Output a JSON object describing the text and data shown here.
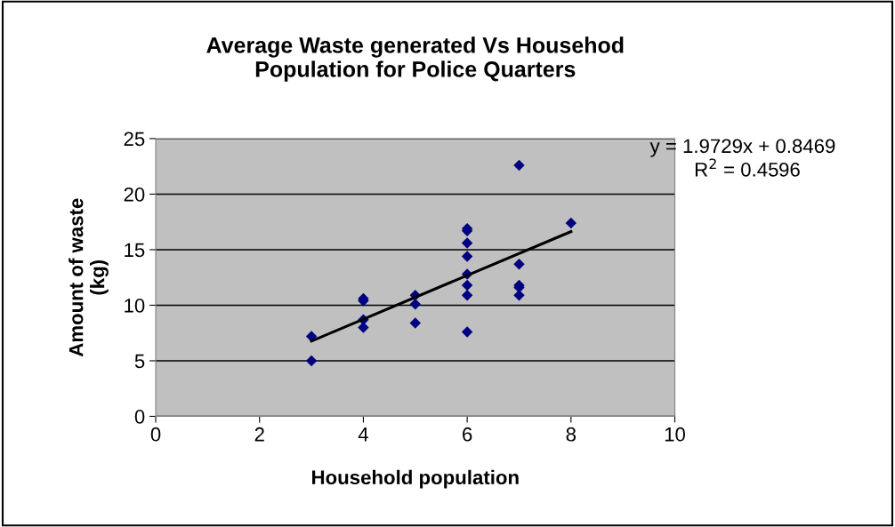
{
  "chart_data": {
    "type": "scatter",
    "title": "Average Waste generated Vs Househod\nPopulation for Police Quarters",
    "xlabel": "Household population",
    "ylabel": "Amount of waste\n(kg)",
    "series": [
      {
        "color": "#000080",
        "marker": "diamond",
        "x": [
          3,
          3,
          4,
          4,
          4,
          4,
          5,
          5,
          5,
          6,
          6,
          6,
          6,
          6,
          6,
          6,
          6,
          7,
          7,
          7,
          7,
          7,
          8
        ],
        "values": [
          7.2,
          5.0,
          10.6,
          10.4,
          8.7,
          8.0,
          10.9,
          10.1,
          8.4,
          16.9,
          16.7,
          15.6,
          14.4,
          12.8,
          11.8,
          10.9,
          7.6,
          22.6,
          13.7,
          11.8,
          11.6,
          10.9,
          17.4
        ]
      },
      {
        "type": "line",
        "color": "#000000",
        "marker": "none",
        "x": [
          3,
          8
        ],
        "values": [
          6.77,
          16.63
        ]
      }
    ],
    "annotations": [
      "y = 1.9729x + 0.8469",
      "R$^{2}$ = 0.4596"
    ],
    "xlim": [
      0,
      10
    ],
    "xticks": [
      0,
      2,
      4,
      6,
      8,
      10
    ],
    "ylim": [
      0,
      25
    ],
    "yticks": [
      0,
      5,
      10,
      15,
      20,
      25
    ],
    "grid": "y"
  }
}
